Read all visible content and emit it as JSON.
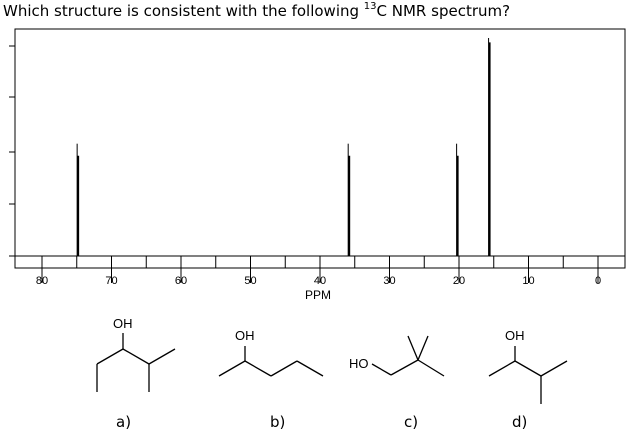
{
  "question": {
    "prefix": "Which structure is consistent with the following ",
    "isotope": "13",
    "suffix": "C NMR spectrum?"
  },
  "chart_data": {
    "type": "bar",
    "title": "",
    "xlabel": "PPM",
    "ylabel": "",
    "x_reversed": true,
    "xlim": [
      80,
      0
    ],
    "ylim": [
      0,
      1
    ],
    "x_ticks": [
      80,
      70,
      60,
      50,
      40,
      30,
      20,
      10,
      0
    ],
    "x_tick_labels": [
      "80",
      "70",
      "60",
      "50",
      "40",
      "30",
      "20",
      "10",
      "0"
    ],
    "grid": false,
    "peaks": [
      {
        "shift": 74.8,
        "intensity": 0.46
      },
      {
        "shift": 35.8,
        "intensity": 0.46
      },
      {
        "shift": 20.2,
        "intensity": 0.46
      },
      {
        "shift": 15.6,
        "intensity": 0.98
      }
    ],
    "line_color": "#000000"
  },
  "options": [
    {
      "label": "a)",
      "group": "OH"
    },
    {
      "label": "b)",
      "group": "OH"
    },
    {
      "label": "c)",
      "group": "HO"
    },
    {
      "label": "d)",
      "group": "OH"
    }
  ]
}
